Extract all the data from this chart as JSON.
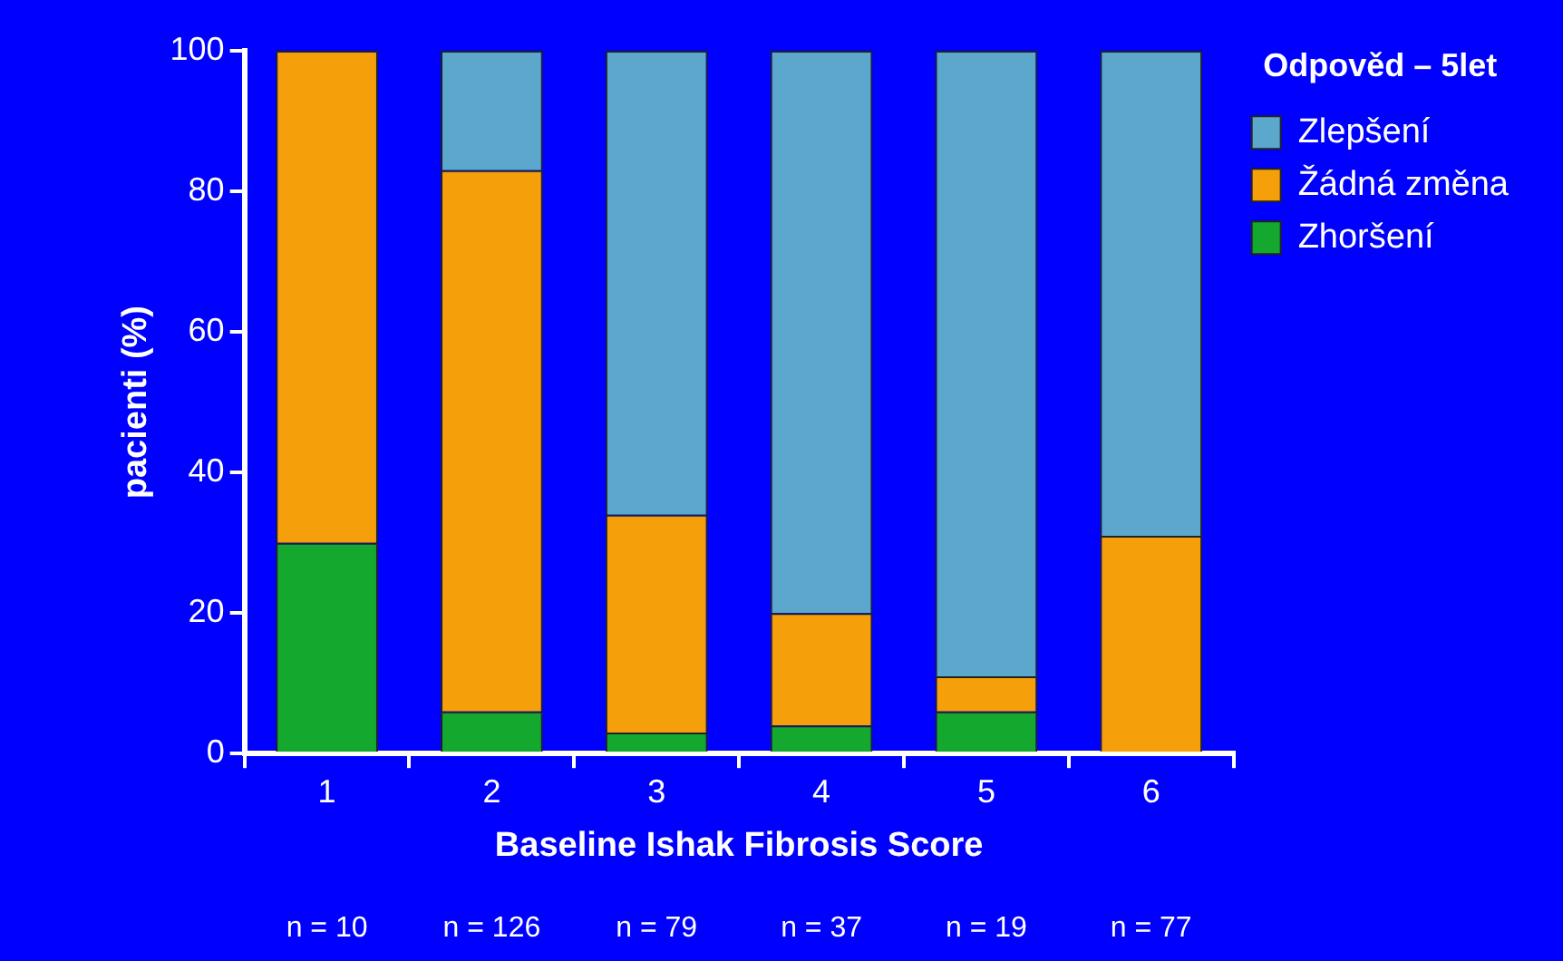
{
  "chart_data": {
    "type": "bar",
    "stacked": true,
    "xlabel": "Baseline Ishak Fibrosis Score",
    "ylabel": "pacienti (%)",
    "legend_title": "Odpověd – 5let",
    "legend": "top right",
    "grid": false,
    "categories": [
      "1",
      "2",
      "3",
      "4",
      "5",
      "6"
    ],
    "ylim": [
      0,
      100
    ],
    "yticks": [
      0,
      20,
      40,
      60,
      80,
      100
    ],
    "series": [
      {
        "name": "Zhoršení",
        "color": "#15a82f",
        "values": [
          30,
          6,
          3,
          4,
          6,
          0
        ]
      },
      {
        "name": "Žádná změna",
        "color": "#f5a00a",
        "values": [
          70,
          77,
          31,
          16,
          5,
          31
        ]
      },
      {
        "name": "Zlepšení",
        "color": "#5ba8cc",
        "values": [
          0,
          17,
          66,
          80,
          89,
          69
        ]
      }
    ],
    "annotations": [
      "n = 10",
      "n = 126",
      "n = 79",
      "n = 37",
      "n = 19",
      "n = 77"
    ]
  }
}
